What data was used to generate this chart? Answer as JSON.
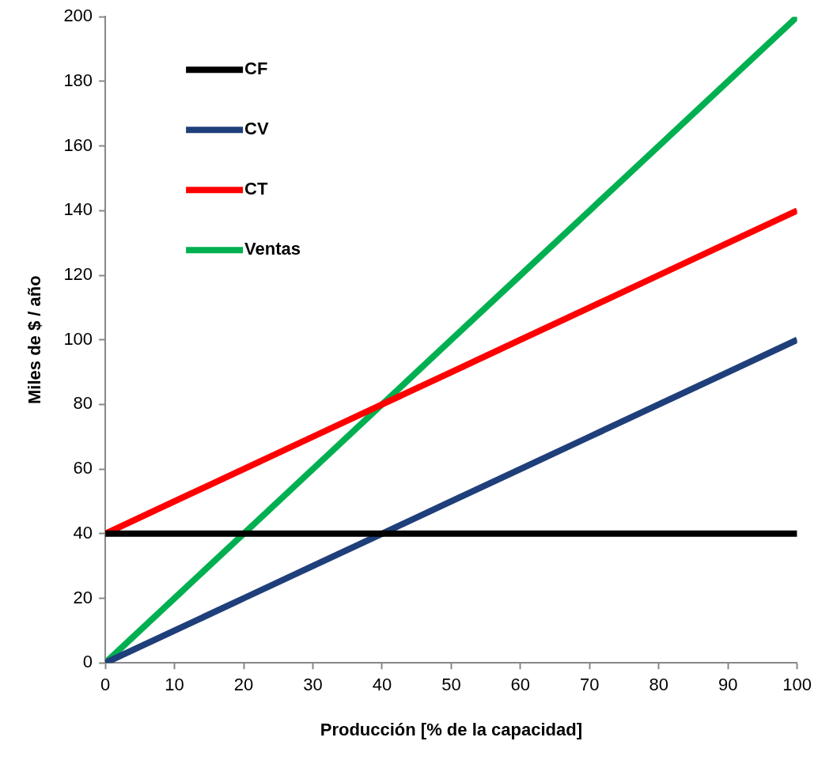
{
  "chart_data": {
    "type": "line",
    "xlabel": "Producción [% de la capacidad]",
    "ylabel": "Miles de $ / año",
    "x": [
      0,
      10,
      20,
      30,
      40,
      50,
      60,
      70,
      80,
      90,
      100
    ],
    "series": [
      {
        "name": "CF",
        "color": "#000000",
        "values": [
          40,
          40,
          40,
          40,
          40,
          40,
          40,
          40,
          40,
          40,
          40
        ]
      },
      {
        "name": "CV",
        "color": "#1f3f7a",
        "values": [
          0,
          10,
          20,
          30,
          40,
          50,
          60,
          70,
          80,
          90,
          100
        ]
      },
      {
        "name": "CT",
        "color": "#ff0000",
        "values": [
          40,
          50,
          60,
          70,
          80,
          90,
          100,
          110,
          120,
          130,
          140
        ]
      },
      {
        "name": "Ventas",
        "color": "#00b050",
        "values": [
          0,
          20,
          40,
          60,
          80,
          100,
          120,
          140,
          160,
          180,
          200
        ]
      }
    ],
    "xlim": [
      0,
      100
    ],
    "xticks": [
      0,
      10,
      20,
      30,
      40,
      50,
      60,
      70,
      80,
      90,
      100
    ],
    "ylim": [
      0,
      200
    ],
    "yticks": [
      0,
      20,
      40,
      60,
      80,
      100,
      120,
      140,
      160,
      180,
      200
    ],
    "grid": false,
    "legend": "top left",
    "marker": "none",
    "line_style": "solid"
  }
}
